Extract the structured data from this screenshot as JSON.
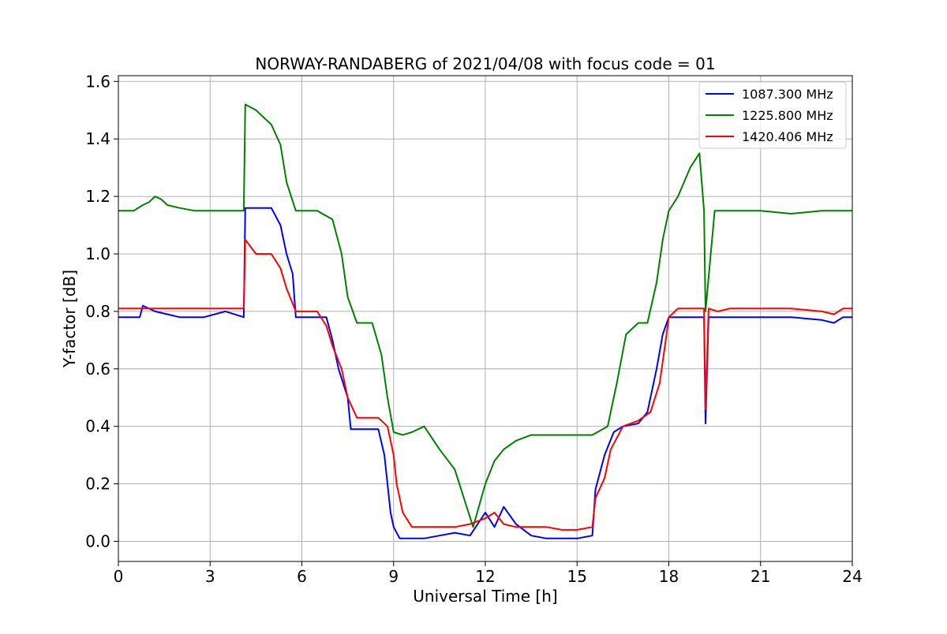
{
  "chart_data": {
    "type": "line",
    "title": "NORWAY-RANDABERG of 2021/04/08 with focus code = 01",
    "xlabel": "Universal Time [h]",
    "ylabel": "Y-factor [dB]",
    "xlim": [
      0,
      24
    ],
    "ylim": [
      -0.07,
      1.62
    ],
    "xticks": [
      0,
      3,
      6,
      9,
      12,
      15,
      18,
      21,
      24
    ],
    "xtick_labels": [
      "0",
      "3",
      "6",
      "9",
      "12",
      "15",
      "18",
      "21",
      "24"
    ],
    "yticks": [
      0.0,
      0.2,
      0.4,
      0.6,
      0.8,
      1.0,
      1.2,
      1.4,
      1.6
    ],
    "ytick_labels": [
      "0.0",
      "0.2",
      "0.4",
      "0.6",
      "0.8",
      "1.0",
      "1.2",
      "1.4",
      "1.6"
    ],
    "grid": true,
    "legend_position": "top-right",
    "series": [
      {
        "name": "1087.300 MHz",
        "color": "#0000ff",
        "x": [
          0.0,
          0.7,
          0.8,
          1.2,
          1.6,
          2.0,
          2.8,
          3.5,
          4.1,
          4.15,
          4.5,
          5.0,
          5.3,
          5.5,
          5.7,
          5.8,
          6.2,
          6.5,
          6.8,
          7.0,
          7.2,
          7.5,
          7.6,
          8.0,
          8.5,
          8.7,
          8.9,
          9.0,
          9.2,
          9.6,
          10.0,
          10.5,
          11.0,
          11.5,
          12.0,
          12.3,
          12.6,
          13.0,
          13.5,
          14.0,
          14.5,
          15.0,
          15.5,
          15.6,
          15.9,
          16.2,
          16.5,
          17.0,
          17.3,
          17.6,
          17.8,
          18.0,
          18.3,
          18.7,
          19.0,
          19.15,
          19.2,
          19.3,
          19.6,
          20.0,
          21.0,
          22.0,
          23.0,
          23.4,
          23.7,
          24.0
        ],
        "y": [
          0.78,
          0.78,
          0.82,
          0.8,
          0.79,
          0.78,
          0.78,
          0.8,
          0.78,
          1.16,
          1.16,
          1.16,
          1.1,
          1.0,
          0.93,
          0.78,
          0.78,
          0.78,
          0.78,
          0.7,
          0.6,
          0.5,
          0.39,
          0.39,
          0.39,
          0.3,
          0.1,
          0.05,
          0.01,
          0.01,
          0.01,
          0.02,
          0.03,
          0.02,
          0.1,
          0.05,
          0.12,
          0.06,
          0.02,
          0.01,
          0.01,
          0.01,
          0.02,
          0.18,
          0.3,
          0.38,
          0.4,
          0.41,
          0.45,
          0.6,
          0.72,
          0.78,
          0.78,
          0.78,
          0.78,
          0.78,
          0.41,
          0.78,
          0.78,
          0.78,
          0.78,
          0.78,
          0.77,
          0.76,
          0.78,
          0.78
        ]
      },
      {
        "name": "1225.800 MHz",
        "color": "#008000",
        "x": [
          0.0,
          0.5,
          0.8,
          1.0,
          1.2,
          1.4,
          1.6,
          2.0,
          2.5,
          3.0,
          3.5,
          4.1,
          4.15,
          4.5,
          5.0,
          5.3,
          5.5,
          5.8,
          6.0,
          6.5,
          7.0,
          7.3,
          7.5,
          7.8,
          8.0,
          8.3,
          8.6,
          8.8,
          9.0,
          9.3,
          9.6,
          10.0,
          10.5,
          11.0,
          11.3,
          11.6,
          12.0,
          12.3,
          12.6,
          13.0,
          13.5,
          14.0,
          14.5,
          15.0,
          15.5,
          16.0,
          16.3,
          16.6,
          17.0,
          17.3,
          17.6,
          17.8,
          18.0,
          18.3,
          18.7,
          19.0,
          19.15,
          19.2,
          19.5,
          20.0,
          20.5,
          21.0,
          22.0,
          23.0,
          23.5,
          24.0
        ],
        "y": [
          1.15,
          1.15,
          1.17,
          1.18,
          1.2,
          1.19,
          1.17,
          1.16,
          1.15,
          1.15,
          1.15,
          1.15,
          1.52,
          1.5,
          1.45,
          1.38,
          1.25,
          1.15,
          1.15,
          1.15,
          1.12,
          1.0,
          0.85,
          0.76,
          0.76,
          0.76,
          0.65,
          0.5,
          0.38,
          0.37,
          0.38,
          0.4,
          0.32,
          0.25,
          0.15,
          0.05,
          0.2,
          0.28,
          0.32,
          0.35,
          0.37,
          0.37,
          0.37,
          0.37,
          0.37,
          0.4,
          0.55,
          0.72,
          0.76,
          0.76,
          0.9,
          1.05,
          1.15,
          1.2,
          1.3,
          1.35,
          1.15,
          0.8,
          1.15,
          1.15,
          1.15,
          1.15,
          1.14,
          1.15,
          1.15,
          1.15
        ]
      },
      {
        "name": "1420.406 MHz",
        "color": "#ff0000",
        "x": [
          0.0,
          0.7,
          1.0,
          1.5,
          2.0,
          3.0,
          3.5,
          4.1,
          4.15,
          4.5,
          5.0,
          5.3,
          5.5,
          5.8,
          6.0,
          6.5,
          6.8,
          7.0,
          7.3,
          7.5,
          7.8,
          8.0,
          8.5,
          8.8,
          9.0,
          9.1,
          9.3,
          9.6,
          10.0,
          10.5,
          11.0,
          11.5,
          12.0,
          12.3,
          12.6,
          13.0,
          13.5,
          14.0,
          14.5,
          15.0,
          15.5,
          15.6,
          15.9,
          16.1,
          16.5,
          17.0,
          17.4,
          17.7,
          17.9,
          18.0,
          18.3,
          18.7,
          19.0,
          19.15,
          19.2,
          19.3,
          19.6,
          20.0,
          21.0,
          22.0,
          23.0,
          23.4,
          23.7,
          24.0
        ],
        "y": [
          0.81,
          0.81,
          0.81,
          0.81,
          0.81,
          0.81,
          0.81,
          0.81,
          1.05,
          1.0,
          1.0,
          0.95,
          0.88,
          0.8,
          0.8,
          0.8,
          0.75,
          0.68,
          0.6,
          0.5,
          0.43,
          0.43,
          0.43,
          0.4,
          0.3,
          0.2,
          0.1,
          0.05,
          0.05,
          0.05,
          0.05,
          0.06,
          0.08,
          0.1,
          0.06,
          0.05,
          0.05,
          0.05,
          0.04,
          0.04,
          0.05,
          0.15,
          0.22,
          0.32,
          0.4,
          0.42,
          0.45,
          0.55,
          0.7,
          0.78,
          0.81,
          0.81,
          0.81,
          0.81,
          0.46,
          0.81,
          0.8,
          0.81,
          0.81,
          0.81,
          0.8,
          0.79,
          0.81,
          0.81
        ]
      }
    ]
  }
}
